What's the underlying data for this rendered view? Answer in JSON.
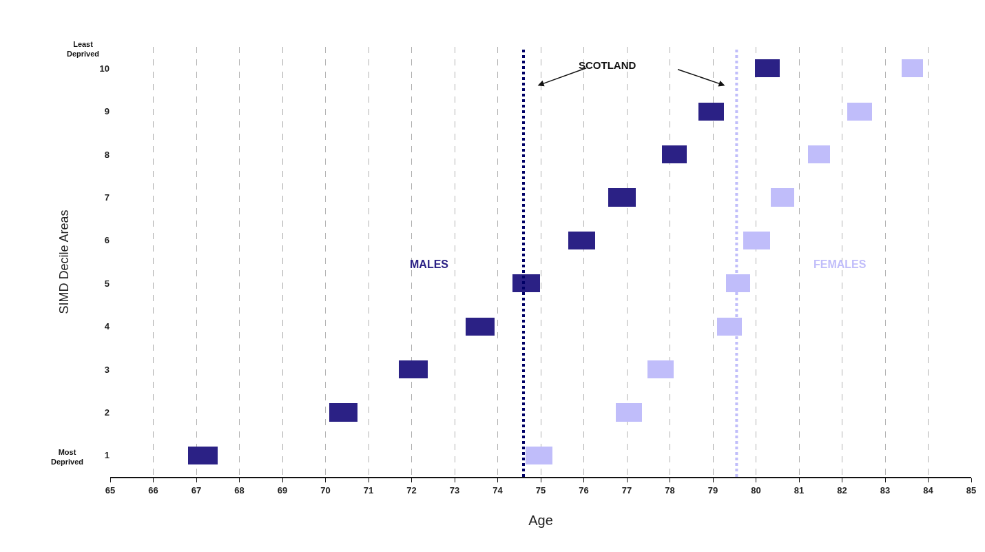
{
  "chart_data": {
    "type": "bar",
    "orientation": "horizontal",
    "xlabel": "Age",
    "ylabel": "SIMD Decile Areas",
    "categories": [
      "10",
      "9",
      "8",
      "7",
      "6",
      "5",
      "4",
      "3",
      "2",
      "1"
    ],
    "series": [
      {
        "name": "MALES",
        "color": "#2b2185",
        "base": [
          79.98,
          78.66,
          77.81,
          76.57,
          75.64,
          74.35,
          73.25,
          71.71,
          70.09,
          66.8
        ],
        "values": [
          0.57,
          0.6,
          0.58,
          0.64,
          0.63,
          0.63,
          0.67,
          0.67,
          0.66,
          0.7
        ]
      },
      {
        "name": "FEMALES",
        "color": "#c0bdfa",
        "base": [
          83.38,
          82.12,
          81.21,
          80.35,
          79.71,
          79.3,
          79.1,
          77.48,
          76.75,
          74.65
        ],
        "values": [
          0.5,
          0.57,
          0.51,
          0.54,
          0.62,
          0.57,
          0.57,
          0.6,
          0.6,
          0.62
        ]
      }
    ],
    "xlim": [
      65,
      85
    ],
    "xticks": [
      65,
      66,
      67,
      68,
      69,
      70,
      71,
      72,
      73,
      74,
      75,
      76,
      77,
      78,
      79,
      80,
      81,
      82,
      83,
      84,
      85
    ],
    "ref_lines": [
      {
        "axis": "x",
        "value": 74.6,
        "color": "#000066",
        "line_style": "dotted"
      },
      {
        "axis": "x",
        "value": 79.55,
        "color": "#c0bdfa",
        "line_style": "dotted"
      }
    ],
    "annotations": [
      "Least Deprived",
      "Most Deprived",
      "SCOTLAND"
    ],
    "grid": "x",
    "legend": false
  }
}
